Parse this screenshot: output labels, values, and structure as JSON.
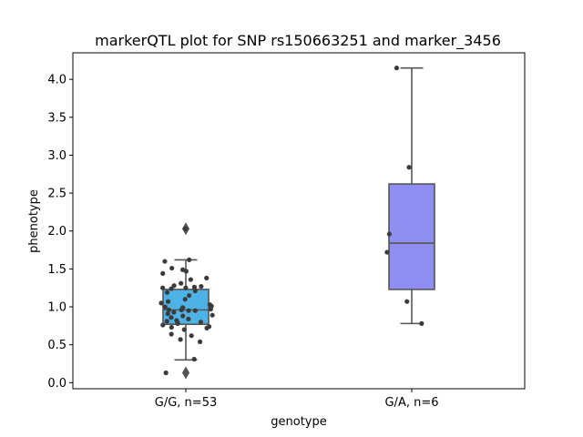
{
  "chart_data": {
    "type": "box",
    "title": "markerQTL plot for SNP rs150663251 and marker_3456",
    "xlabel": "genotype",
    "ylabel": "phenotype",
    "ylim": [
      -0.08,
      4.35
    ],
    "yticks": [
      "0.0",
      "0.5",
      "1.0",
      "1.5",
      "2.0",
      "2.5",
      "3.0",
      "3.5",
      "4.0"
    ],
    "grid": false,
    "categories": [
      "G/G, n=53",
      "G/A, n=6"
    ],
    "boxes": [
      {
        "category": "G/G, n=53",
        "color": "#4db3e6",
        "q1": 0.77,
        "median": 0.96,
        "q3": 1.23,
        "whisker_low": 0.3,
        "whisker_high": 1.62,
        "outliers": [
          2.03,
          0.13
        ],
        "points": [
          2.03,
          1.62,
          1.6,
          1.51,
          1.49,
          1.47,
          1.44,
          1.38,
          1.36,
          1.31,
          1.28,
          1.27,
          1.26,
          1.25,
          1.25,
          1.24,
          1.21,
          1.19,
          1.15,
          1.1,
          1.07,
          1.05,
          1.03,
          1.01,
          1.0,
          0.99,
          0.97,
          0.96,
          0.96,
          0.95,
          0.95,
          0.93,
          0.91,
          0.89,
          0.88,
          0.86,
          0.84,
          0.82,
          0.81,
          0.8,
          0.79,
          0.78,
          0.76,
          0.74,
          0.73,
          0.72,
          0.7,
          0.64,
          0.62,
          0.57,
          0.54,
          0.31,
          0.13
        ]
      },
      {
        "category": "G/A, n=6",
        "color": "#8f8ff2",
        "q1": 1.23,
        "median": 1.84,
        "q3": 2.62,
        "whisker_low": 0.78,
        "whisker_high": 4.15,
        "outliers": [],
        "points": [
          4.15,
          2.84,
          1.96,
          1.72,
          1.07,
          0.78
        ]
      }
    ]
  },
  "colors": {
    "box_edge": "#555555",
    "point": "#3b3b3b",
    "outlier": "#555555"
  }
}
